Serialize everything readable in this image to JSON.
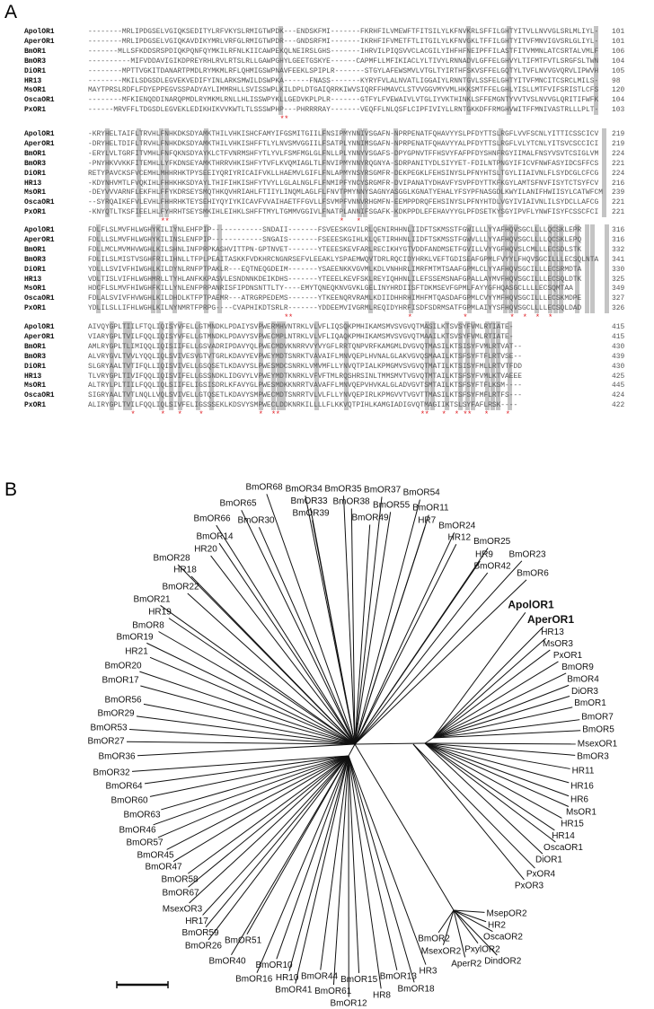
{
  "panels": {
    "a": "A",
    "b": "B"
  },
  "alignment": {
    "names": [
      "ApolOR1",
      "AperOR1",
      "BmOR1",
      "BmOR3",
      "DiOR1",
      "HR13",
      "MsOR1",
      "OscaOR1",
      "PxOR1"
    ],
    "blocks": [
      {
        "rows": [
          {
            "seq": "--------MRLIPDGSELVGIQKSEDITYLRFVKYSLRMIGTWPDK---ENDSKFMI-------FKRHFILVMEWFTFITSILYLKFNVKRLSFFILGHTYITVLLNVVGLSRLMLIYL-",
            "end": "101"
          },
          {
            "seq": "--------MRLIPDGSELVGIQKAVDIKYMRLVRFGLRMIGTWPDR---GNDSRFMI-------IKRHFIFVMETFTLITGILYLKFNVGKLTFFILGHTYITVFMNVIGVSRLGLIYL-",
            "end": "101"
          },
          {
            "seq": "-------MLLSFKDDSRSPDIQKPQNFQYMKILRFNLKIICAWPEKQLNEIRSLGHS-------IHRVILPIQSVVCLACGILYIHFHFNEIPFFILASTFITVMMNLATCSRTALVMLF",
            "end": "106"
          },
          {
            "seq": "----------MIFVDDAVIGIKDPREYRHLRVLRTSLRLLGAWPGHYLGEETGSKYE------CAPMFLLMFIKIACLYLTIVYLRNNADVLGFFELGHVYLTIFMTFVTLSRGFSLTWN",
            "end": "104"
          },
          {
            "seq": "--------MPTTVGKITDANARTPMDLRYMKMLRFLQHMIGSWPNAVFEEKLSPIPLR-------STGYLAFEWSMVLVTGLTYIRTHFSKVSFFELGQTYLTVFLNVVGVQRVLIPWVH",
            "end": "105"
          },
          {
            "seq": "--------MKILSDGSDLEGVEKVEDIFYINLARKSMWILDSWPKA------FNASS-------KYRYFVLALNVATLIGGAIYLRNNTGVLSSFELGHTYITVFMNCITCSRCLMILS-",
            "end": "98"
          },
          {
            "seq": "MAYTPRSLRDFLFDYEPPEGVSSPADYAYLIMMRHLLSVISSWPLKILDPLDTGAIQRRKIWVSIQRFFHMAVCLSTVVGGVMYVMLHKKSMTFFELGHLYISLLMTFVIFSRISTLCFS",
            "end": "120"
          },
          {
            "seq": "--------MFKIENQDDINARQPMDLRYMKMLRNLLHLISSWPYKLLGEDVKPLPLR-------GTFYLFVEWAIVLVTGLIYVKTHINKLSFFEMGNTYVVTVSLNVVGLQRITIFWFK",
            "end": "104"
          },
          {
            "seq": "------MRVFFLTDGSDLEGVEKLEDIKHIKVVKWTLTLSSSWPHP---PHRRRRAY-------VEQFFLNLQSFLCIPFIVIYLLRNTGKKDFFRMGHVWITFFMNIVASTRLLLPLT-",
            "end": "103"
          }
        ],
        "stars": "                                             **"
      },
      {
        "rows": [
          {
            "seq": "-KRYHELTAIFLTRVHLFNHKDKSDYAMKTHILVHKISHCFAMYIFGSMITGIILFNSIPMYNNIVSGAFN-NPRPENATFQHAVYYSLPFDYTTSLRGFLVVFSCNLYITTICSSCICV",
            "end": "219"
          },
          {
            "seq": "-DRYHELTDIFLTRVHLFNHKDKSDYAMKTHILVHKISHFFTLYLNVSMVGGIILFSATPLYNNIMSGAFN-NPRPENATFQHAVYYALPFDYTTSLRGFLVLYTCNLYITSVCSCCICI",
            "end": "219"
          },
          {
            "seq": "-ERYLVLTGRFITVMHLFNFQKNSDYAYKLCTFVNRMSHFYTLYVLFSMFMGLGLFNLLPLYNNYVSGAFS-DPYGPNVTFFHSVYFAFPFDYSHNFRGYIIMALFNSYVSVTCSIGLVM",
            "end": "224"
          },
          {
            "seq": "-PNYHKVVKKFITEMHLLYFKDNSEYAMKTHRRVHKISHFYTVFLKVQMIAGLTLFNVIPMYNNYRQGNYA-SDRPANITYDLSIYYET-FDILNTPNGYIFICVFNWFASYIDCSFFCS",
            "end": "221"
          },
          {
            "seq": "RETYPAVCKSFVCEMHLMHHRHKTPYSEEIYQRIYRICAIFVKLLHAEMVLGIFLFNLAPMYNSYRSGMFR-DEKPEGKLFEHSINYSLPFNYHTSLTGYLIIAIVNLFLSYDCGLCFCG",
            "end": "224"
          },
          {
            "seq": "-KDYNHVMTLFVQKIHLFHHKHKSDYAYLTHIFIHKISHFYTVYLLGLALNGLFLFNMIPFYNCYSRGMFR-DVIPANATYDHAVFYSVPFDYTTKFKGYLAMTSFNVFISYTCTSYFCV",
            "end": "216"
          },
          {
            "seq": "-DEYVVVARNFLEKFHLFFYKDRSEYSMQTHKQVHRIAHLFTIIYLINQMLAGLFLFNVTPMYNNYSAGNYASGGLKGNATYEHALYFSYPFNASGDLKWYILANIFHWIISYLCATWFCM",
            "end": "239"
          },
          {
            "seq": "--SYRQAIKEFVLEVHLFHHRHKTEYSEHIYQYIYKICAVFVVAIHAETFFGVLLFSVMPFVNNVRHGMFN-EEMPPDRQFEHSINYSLPFNYHTDLVGYIVIAIVNLILSYDCLLAFCG",
            "end": "221"
          },
          {
            "seq": "-KNYQTLTKSFIEELHLFYHRHTSEYSMKIHLEIHKLSHFFTMYLTGMMVGGIVLFNATPLANNIFSGAFK-KDKPPDLEFEHAVYYGLPFDSETKYSGYIPVFLYNWFISYFCSSCFCI",
            "end": "221"
          }
        ],
        "stars": "                 **                                        *   *"
      },
      {
        "rows": [
          {
            "seq": "FDLFLSLMVFHLWGHYKILIYNLEHFPIP------------SNDAII-------FSVEESKGVILRLQENIRHHNLIIDFTSKMSSTFGWILLLYYAFHQVSGCLLLLQCSKLEPR",
            "end": "316"
          },
          {
            "seq": "FDLLLSLMVFHLWGHYKILINSLENFPIP------------SNGAIS-------FSEEESKGIHLKLQETIRHHNLIIDFTSKMSSTFGWVLLLYYAFHQVSGCLLLLQCSKLEPQ",
            "end": "316"
          },
          {
            "seq": "FDLLMCLMVMHVWGHLKILSHNLINFPRPKASHVITTPN-GPTNVET-------YTEEESKEVFARLRECIKHYGTVDDFANDMSETFGVILLVYYGFHQVSLCMLLLECSDLSTK",
            "end": "332"
          },
          {
            "seq": "FDLILSLMISTVSGHFRILIHNLLTFPLPEAITASKKFVDKHRCNGNRSEFVLEEAKLYSPAEMWQVTDRLRQCIDYHRKLVEFTGDISEAFGPMLFVYYLFHQVSGCILLLECSQLNTA",
            "end": "341"
          },
          {
            "seq": "YDLLLSVIVFHIWGHLKILDYNLRNFPTPAKLR---EQTNEQGDEIM-------YSAEENKKVGVMLKDLVNHHRLIMRFMTMTSAAFGPMLCLYYAFHQVSGCILLLECSRMDTA",
            "end": "330"
          },
          {
            "seq": "VDLTISLVIFHLWGHMRLLTYHLANFKKPASVLESNDNNKDEIKDHS-------YTEEELKEVFSKLREYIQHHNLILEFSSEMSNAFGPALLAYMVFHQVSGCILLLECSQLDTK",
            "end": "325"
          },
          {
            "seq": "HDCFLSLMVFHIWGHFKILLYNLENFPRPANRISFIPDNSNTTLTY----EMYTQNEQKNVGVKLGELINYHRDIISFTDKMSEVFGPMLFAYYGFHQASGCLLLLECSQMTAA",
            "end": "349"
          },
          {
            "seq": "FDLALSVIVFHVWGHLKILDHDLKTFPTPAEMR---ATRGRPEDEMS-------YTKEENQRVRAMLKDIIDHHRHIMHFMTQASDAFGPMLCVYYMFHQVSGCILLLECSKMDPE",
            "end": "327"
          },
          {
            "seq": "YDLILSLLIFHLWGHLKILNYNMRTFPRPG----CVAPHIKDTSRLR-------YDDEEMVIVGRMLREQIDYHRFISDFSDRMSATFGPMLAIYYSFHQVSGCLLLLECSQLDAD",
            "end": "326"
          }
        ],
        "stars": "                                              **                           *            *          *  *  *  *"
      },
      {
        "rows": [
          {
            "seq": "AIVQYGPLTIILFTQLIQISYVFELLGTMNDKLPDAIYSVPWERMHVNTRKLVLVFLIQSQKPMHIKAMSMVSVGVQTMASILKTSVSYFVMLRTIATE-",
            "end": "415"
          },
          {
            "seq": "VIARYGPLTVILFQQLIQISYVFELLGTMNDKLPDAVYSVPWECMPLNTRKLVLVFLIQAQKPMHIKAMSMVSVGVQTMAAILKTSVSYFVMLRTIATE-",
            "end": "415"
          },
          {
            "seq": "AMLRYGPLTLIMIQQLIQISIIFELLGSVADRIPDAVYQLPWECMDVKNRRVVYVYGFLRRTQNPVRFKAMGMLDVGVQTMASILKTSISYFVMLRTVAT--",
            "end": "430"
          },
          {
            "seq": "ALVRYGVLTVVLYQQLIQLSVIVESVGTVTGRLKDAVYEVPWEYMDTSNRKTVAVAIFLMNVQEPLHVNALGLAKVGVQSMAAILKTSFSYFTFLRTVSE--",
            "end": "439"
          },
          {
            "seq": "SLGRYAALTVTIFQLLIQISVIVELLGSQSETLKDAVYSLPWESMDCSNRKLVMVMFLLYNVQTPIALKPMGMVSVGVQTMATILKTSISYFMLLRTVTFDD",
            "end": "430"
          },
          {
            "seq": "TLVRYGPLTIVIFQQLIQISVIFELLGSSNDKLIDGVYLVPWEYMDTKNRKLVFVFTMLRQSHRSINLTMMSMVTVGVQTMTAILKTSFSYFVMLKTVAEEE",
            "end": "425"
          },
          {
            "seq": "ALTRYLPLTIILFQQLIQLSIIFELIGSISDRLKFAVYGLPWESMDKKNRRTVAVAFFLMNVQEPVHVKALGLADVGVTSMTAILKTSFSYFTFLKSM----",
            "end": "445"
          },
          {
            "seq": "SIGRYAALTVTLNQLLVQLSVIVELLGTQSETLKDAVYSMPWECMDTSNRRTVLVLFLLYNVQEPIRLKPMGVVTVGVTTMASILKTSFSYFMFLRTFS---",
            "end": "424"
          },
          {
            "seq": "ALIRYGPLTVILFQQLIQLSIVFELIGSSSEKLKDSVYSMPWECLDDKNRKILLLLFLKKVQTPIHLKAMGIADIGVQTMAGIIKTSLSYFAFLRSK----",
            "end": "422"
          }
        ],
        "stars": "          *      *   *    *             *  **                                 **   *  * **   *    *"
      }
    ],
    "colors": {
      "shading": "#c4c4c4",
      "conserved_star": "#e0242a"
    }
  },
  "tree": {
    "labels": [
      {
        "name": "BmOR68"
      },
      {
        "name": "BmOR34"
      },
      {
        "name": "BmOR35"
      },
      {
        "name": "BmOR37"
      },
      {
        "name": "BmOR54"
      },
      {
        "name": "BmOR33"
      },
      {
        "name": "BmOR38"
      },
      {
        "name": "BmOR55"
      },
      {
        "name": "BmOR65"
      },
      {
        "name": "BmOR39"
      },
      {
        "name": "BmOR49"
      },
      {
        "name": "BmOR11"
      },
      {
        "name": "BmOR66"
      },
      {
        "name": "BmOR30"
      },
      {
        "name": "HR7"
      },
      {
        "name": "BmOR24"
      },
      {
        "name": "BmOR14"
      },
      {
        "name": "HR12"
      },
      {
        "name": "BmOR25"
      },
      {
        "name": "HR20"
      },
      {
        "name": "HR9"
      },
      {
        "name": "BmOR23"
      },
      {
        "name": "BmOR28"
      },
      {
        "name": "BmOR42"
      },
      {
        "name": "HR18"
      },
      {
        "name": "BmOR6"
      },
      {
        "name": "BmOR22"
      },
      {
        "name": "BmOR21"
      },
      {
        "name": "HR19"
      },
      {
        "name": "BmOR8"
      },
      {
        "name": "BmOR19"
      },
      {
        "name": "HR21"
      },
      {
        "name": "ApolOR1",
        "highlight": true
      },
      {
        "name": "AperOR1",
        "highlight": true
      },
      {
        "name": "HR13"
      },
      {
        "name": "MsOR3"
      },
      {
        "name": "PxOR1"
      },
      {
        "name": "BmOR9"
      },
      {
        "name": "BmOR4"
      },
      {
        "name": "DiOR3"
      },
      {
        "name": "BmOR1"
      },
      {
        "name": "BmOR7"
      },
      {
        "name": "BmOR5"
      },
      {
        "name": "MsexOR1"
      },
      {
        "name": "BmOR3"
      },
      {
        "name": "HR11"
      },
      {
        "name": "HR16"
      },
      {
        "name": "HR6"
      },
      {
        "name": "MsOR1"
      },
      {
        "name": "HR15"
      },
      {
        "name": "HR14"
      },
      {
        "name": "OscaOR1"
      },
      {
        "name": "DiOR1"
      },
      {
        "name": "PxOR4"
      },
      {
        "name": "PxOR3"
      },
      {
        "name": "BmOR20"
      },
      {
        "name": "BmOR17"
      },
      {
        "name": "BmOR56"
      },
      {
        "name": "BmOR29"
      },
      {
        "name": "BmOR53"
      },
      {
        "name": "BmOR27"
      },
      {
        "name": "BmOR36"
      },
      {
        "name": "BmOR32"
      },
      {
        "name": "BmOR64"
      },
      {
        "name": "BmOR60"
      },
      {
        "name": "BmOR63"
      },
      {
        "name": "BmOR46"
      },
      {
        "name": "BmOR57"
      },
      {
        "name": "BmOR45"
      },
      {
        "name": "BmOR47"
      },
      {
        "name": "BmOR58"
      },
      {
        "name": "BmOR67"
      },
      {
        "name": "MsexOR3"
      },
      {
        "name": "HR17"
      },
      {
        "name": "BmOR59"
      },
      {
        "name": "BmOR51"
      },
      {
        "name": "BmOR26"
      },
      {
        "name": "BmOR40"
      },
      {
        "name": "BmOR10"
      },
      {
        "name": "BmOR16"
      },
      {
        "name": "HR10"
      },
      {
        "name": "BmOR44"
      },
      {
        "name": "BmOR41"
      },
      {
        "name": "BmOR61"
      },
      {
        "name": "BmOR12"
      },
      {
        "name": "BmOR15"
      },
      {
        "name": "HR8"
      },
      {
        "name": "BmOR13"
      },
      {
        "name": "BmOR18"
      },
      {
        "name": "HR3"
      },
      {
        "name": "BmOR2"
      },
      {
        "name": "MsexOR2"
      },
      {
        "name": "AperR2"
      },
      {
        "name": "PxylOR2"
      },
      {
        "name": "DindOR2"
      },
      {
        "name": "OscaOR2"
      },
      {
        "name": "HR2"
      },
      {
        "name": "MsepOR2"
      }
    ]
  }
}
